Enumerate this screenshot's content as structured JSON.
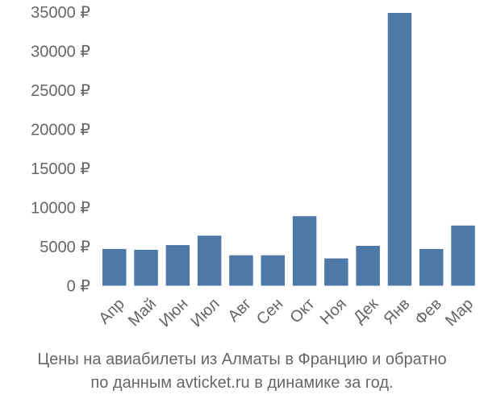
{
  "chart_data": {
    "type": "bar",
    "title": "Цены на авиабилеты из Алматы в Францию и обратно по данным avticket.ru в динамике за год.",
    "xlabel": "",
    "ylabel": "",
    "categories": [
      "Апр",
      "Май",
      "Июн",
      "Июл",
      "Авг",
      "Сен",
      "Окт",
      "Ноя",
      "Дек",
      "Янв",
      "Фев",
      "Мар"
    ],
    "values": [
      4700,
      4600,
      5200,
      6400,
      3900,
      3900,
      8900,
      3500,
      5100,
      34900,
      4700,
      7700
    ],
    "ylim": [
      0,
      35000
    ],
    "y_ticks": [
      0,
      5000,
      10000,
      15000,
      20000,
      25000,
      30000,
      35000
    ],
    "y_tick_labels": [
      "0 ₽",
      "5000 ₽",
      "10000 ₽",
      "15000 ₽",
      "20000 ₽",
      "25000 ₽",
      "30000 ₽",
      "35000 ₽"
    ],
    "currency_symbol": "₽",
    "grid": false,
    "legend": "none",
    "x_label_rotation": -45,
    "bar_color": "#4e79a7"
  },
  "caption": {
    "line1": "Цены на авиабилеты из Алматы в Францию и обратно",
    "line2": "по данным avticket.ru в динамике за год."
  },
  "colors": {
    "bar": "#4e79a7",
    "text": "#666666",
    "background": "#ffffff"
  }
}
